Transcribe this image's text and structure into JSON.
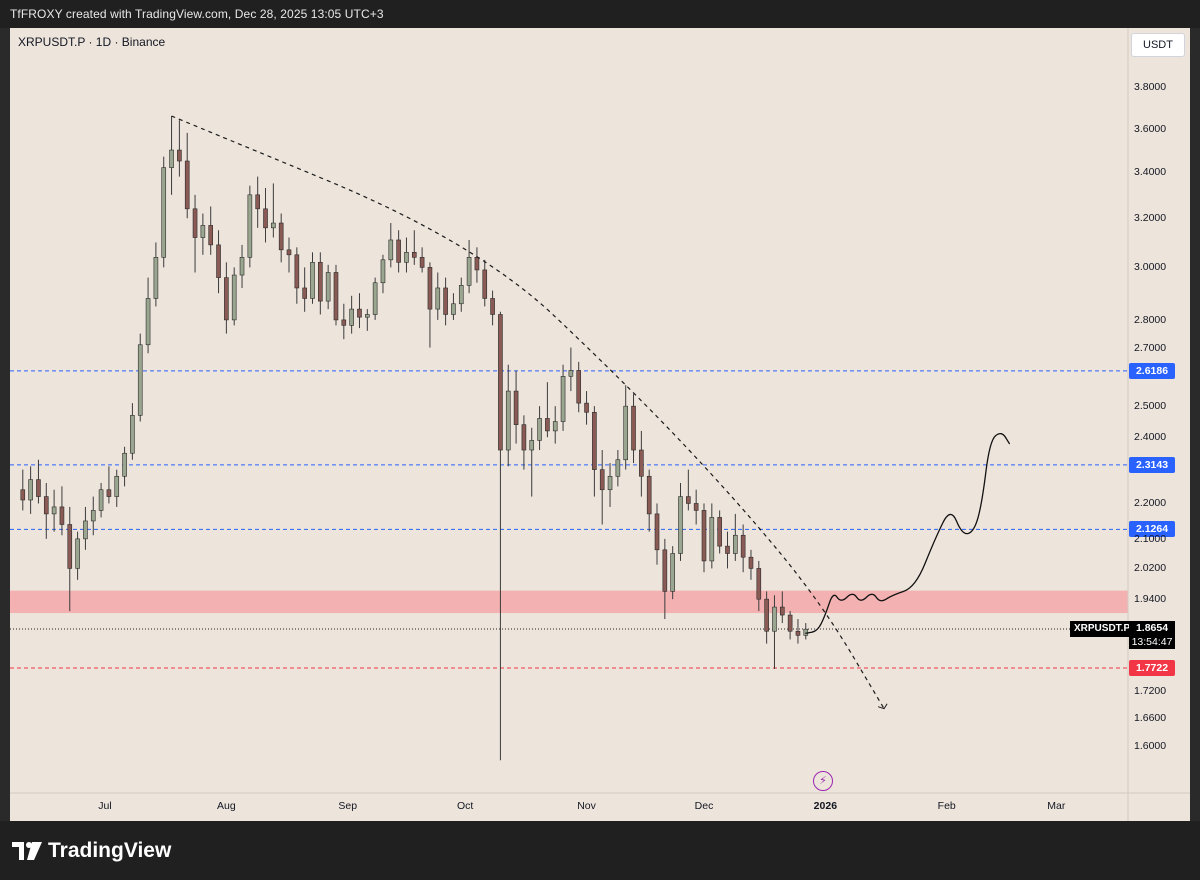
{
  "header": {
    "text": "TfFROXY created with TradingView.com, Dec 28, 2025 13:05 UTC+3"
  },
  "symbol_info": "XRPUSDT.P · 1D · Binance",
  "currency": "USDT",
  "footer": {
    "brand": "TradingView"
  },
  "last_price": {
    "symbol": "XRPUSDT.P",
    "price": "1.8654",
    "countdown": "13:54:47"
  },
  "colors": {
    "background": "#ede4dc",
    "up_candle": "#9aa68f",
    "down_candle": "#8a5a55",
    "blue_line": "#2962ff",
    "red_line": "#f23645",
    "zone": "#f3a9a9"
  },
  "chart_data": {
    "type": "candlestick",
    "symbol": "XRPUSDT.P",
    "interval": "1D",
    "exchange": "Binance",
    "y_scale": "log",
    "ylim": [
      1.55,
      3.95
    ],
    "y_ticks": [
      "3.8000",
      "3.6000",
      "3.4000",
      "3.2000",
      "3.0000",
      "2.8000",
      "2.7000",
      "2.5000",
      "2.4000",
      "2.2000",
      "2.1000",
      "2.0200",
      "1.9400",
      "1.7200",
      "1.6600",
      "1.6000"
    ],
    "x_ticks": [
      {
        "label": "Jul",
        "date": "2025-07-01"
      },
      {
        "label": "Aug",
        "date": "2025-08-01"
      },
      {
        "label": "Sep",
        "date": "2025-09-01"
      },
      {
        "label": "Oct",
        "date": "2025-10-01"
      },
      {
        "label": "Nov",
        "date": "2025-11-01"
      },
      {
        "label": "Dec",
        "date": "2025-12-01"
      },
      {
        "label": "2026",
        "date": "2026-01-01",
        "bold": true
      },
      {
        "label": "Feb",
        "date": "2026-02-01"
      },
      {
        "label": "Mar",
        "date": "2026-03-01"
      }
    ],
    "price_lines": [
      {
        "value": 2.6186,
        "label": "2.6186",
        "color": "#2962ff",
        "style": "dashed"
      },
      {
        "value": 2.3143,
        "label": "2.3143",
        "color": "#2962ff",
        "style": "dashed"
      },
      {
        "value": 2.1264,
        "label": "2.1264",
        "color": "#2962ff",
        "style": "dashed"
      },
      {
        "value": 1.7722,
        "label": "1.7722",
        "color": "#f23645",
        "style": "dashed"
      }
    ],
    "last_price_line": {
      "value": 1.8654,
      "style": "dotted"
    },
    "zone": {
      "low": 1.905,
      "high": 1.962,
      "color": "#f3a9a9"
    },
    "trendline": {
      "style": "dashed",
      "points": [
        {
          "date": "2025-07-18",
          "price": 3.66
        },
        {
          "date": "2025-10-04",
          "price": 3.1
        },
        {
          "date": "2025-11-13",
          "price": 2.55
        },
        {
          "date": "2025-12-10",
          "price": 2.2
        },
        {
          "date": "2025-12-31",
          "price": 1.93
        },
        {
          "date": "2026-01-16",
          "price": 1.68
        }
      ]
    },
    "projection_path": [
      {
        "date": "2025-12-27",
        "price": 1.855
      },
      {
        "date": "2025-12-30",
        "price": 1.86
      },
      {
        "date": "2026-01-01",
        "price": 1.9
      },
      {
        "date": "2026-01-03",
        "price": 1.96
      },
      {
        "date": "2026-01-05",
        "price": 1.93
      },
      {
        "date": "2026-01-08",
        "price": 1.96
      },
      {
        "date": "2026-01-10",
        "price": 1.93
      },
      {
        "date": "2026-01-13",
        "price": 1.96
      },
      {
        "date": "2026-01-15",
        "price": 1.93
      },
      {
        "date": "2026-01-18",
        "price": 1.95
      },
      {
        "date": "2026-01-24",
        "price": 1.97
      },
      {
        "date": "2026-01-29",
        "price": 2.1
      },
      {
        "date": "2026-02-02",
        "price": 2.19
      },
      {
        "date": "2026-02-05",
        "price": 2.11
      },
      {
        "date": "2026-02-08",
        "price": 2.12
      },
      {
        "date": "2026-02-10",
        "price": 2.2
      },
      {
        "date": "2026-02-12",
        "price": 2.39
      },
      {
        "date": "2026-02-15",
        "price": 2.42
      },
      {
        "date": "2026-02-17",
        "price": 2.38
      }
    ],
    "candles": [
      [
        "2025-06-10",
        2.24,
        2.3,
        2.18,
        2.21
      ],
      [
        "2025-06-12",
        2.21,
        2.31,
        2.17,
        2.27
      ],
      [
        "2025-06-14",
        2.27,
        2.33,
        2.2,
        2.22
      ],
      [
        "2025-06-16",
        2.22,
        2.26,
        2.1,
        2.17
      ],
      [
        "2025-06-18",
        2.17,
        2.24,
        2.12,
        2.19
      ],
      [
        "2025-06-20",
        2.19,
        2.25,
        2.11,
        2.14
      ],
      [
        "2025-06-22",
        2.14,
        2.19,
        1.91,
        2.02
      ],
      [
        "2025-06-24",
        2.02,
        2.12,
        1.99,
        2.1
      ],
      [
        "2025-06-26",
        2.1,
        2.19,
        2.07,
        2.15
      ],
      [
        "2025-06-28",
        2.15,
        2.22,
        2.11,
        2.18
      ],
      [
        "2025-06-30",
        2.18,
        2.26,
        2.16,
        2.24
      ],
      [
        "2025-07-02",
        2.24,
        2.31,
        2.2,
        2.22
      ],
      [
        "2025-07-04",
        2.22,
        2.3,
        2.19,
        2.28
      ],
      [
        "2025-07-06",
        2.28,
        2.37,
        2.25,
        2.35
      ],
      [
        "2025-07-08",
        2.35,
        2.51,
        2.33,
        2.47
      ],
      [
        "2025-07-10",
        2.47,
        2.75,
        2.45,
        2.71
      ],
      [
        "2025-07-12",
        2.71,
        2.96,
        2.68,
        2.88
      ],
      [
        "2025-07-14",
        2.88,
        3.1,
        2.85,
        3.04
      ],
      [
        "2025-07-16",
        3.04,
        3.47,
        3.0,
        3.42
      ],
      [
        "2025-07-18",
        3.42,
        3.66,
        3.3,
        3.5
      ],
      [
        "2025-07-20",
        3.5,
        3.64,
        3.38,
        3.45
      ],
      [
        "2025-07-22",
        3.45,
        3.58,
        3.2,
        3.24
      ],
      [
        "2025-07-24",
        3.24,
        3.3,
        2.98,
        3.12
      ],
      [
        "2025-07-26",
        3.12,
        3.22,
        3.05,
        3.17
      ],
      [
        "2025-07-28",
        3.17,
        3.25,
        3.05,
        3.09
      ],
      [
        "2025-07-30",
        3.09,
        3.15,
        2.9,
        2.96
      ],
      [
        "2025-08-01",
        2.96,
        3.02,
        2.75,
        2.8
      ],
      [
        "2025-08-03",
        2.8,
        3.0,
        2.78,
        2.97
      ],
      [
        "2025-08-05",
        2.97,
        3.09,
        2.92,
        3.04
      ],
      [
        "2025-08-07",
        3.04,
        3.34,
        3.0,
        3.3
      ],
      [
        "2025-08-09",
        3.3,
        3.38,
        3.16,
        3.24
      ],
      [
        "2025-08-11",
        3.24,
        3.33,
        3.1,
        3.16
      ],
      [
        "2025-08-13",
        3.16,
        3.35,
        3.12,
        3.18
      ],
      [
        "2025-08-15",
        3.18,
        3.22,
        3.02,
        3.07
      ],
      [
        "2025-08-17",
        3.07,
        3.12,
        2.98,
        3.05
      ],
      [
        "2025-08-19",
        3.05,
        3.08,
        2.86,
        2.92
      ],
      [
        "2025-08-21",
        2.92,
        3.0,
        2.83,
        2.88
      ],
      [
        "2025-08-23",
        2.88,
        3.06,
        2.86,
        3.02
      ],
      [
        "2025-08-25",
        3.02,
        3.06,
        2.82,
        2.87
      ],
      [
        "2025-08-27",
        2.87,
        3.01,
        2.84,
        2.98
      ],
      [
        "2025-08-29",
        2.98,
        3.01,
        2.78,
        2.8
      ],
      [
        "2025-08-31",
        2.8,
        2.86,
        2.73,
        2.78
      ],
      [
        "2025-09-02",
        2.78,
        2.89,
        2.75,
        2.84
      ],
      [
        "2025-09-04",
        2.84,
        2.9,
        2.77,
        2.81
      ],
      [
        "2025-09-06",
        2.81,
        2.84,
        2.76,
        2.82
      ],
      [
        "2025-09-08",
        2.82,
        2.96,
        2.8,
        2.94
      ],
      [
        "2025-09-10",
        2.94,
        3.05,
        2.9,
        3.03
      ],
      [
        "2025-09-12",
        3.03,
        3.18,
        3.0,
        3.11
      ],
      [
        "2025-09-14",
        3.11,
        3.15,
        2.98,
        3.02
      ],
      [
        "2025-09-16",
        3.02,
        3.12,
        2.98,
        3.06
      ],
      [
        "2025-09-18",
        3.06,
        3.15,
        3.01,
        3.04
      ],
      [
        "2025-09-20",
        3.04,
        3.08,
        2.98,
        3.0
      ],
      [
        "2025-09-22",
        3.0,
        3.02,
        2.7,
        2.84
      ],
      [
        "2025-09-24",
        2.84,
        2.98,
        2.8,
        2.92
      ],
      [
        "2025-09-26",
        2.92,
        2.96,
        2.78,
        2.82
      ],
      [
        "2025-09-28",
        2.82,
        2.9,
        2.8,
        2.86
      ],
      [
        "2025-09-30",
        2.86,
        2.96,
        2.83,
        2.93
      ],
      [
        "2025-10-02",
        2.93,
        3.11,
        2.9,
        3.04
      ],
      [
        "2025-10-04",
        3.04,
        3.08,
        2.94,
        2.99
      ],
      [
        "2025-10-06",
        2.99,
        3.03,
        2.85,
        2.88
      ],
      [
        "2025-10-08",
        2.88,
        2.91,
        2.78,
        2.82
      ],
      [
        "2025-10-10",
        2.82,
        2.83,
        1.57,
        2.36
      ],
      [
        "2025-10-12",
        2.36,
        2.64,
        2.31,
        2.55
      ],
      [
        "2025-10-14",
        2.55,
        2.62,
        2.38,
        2.44
      ],
      [
        "2025-10-16",
        2.44,
        2.47,
        2.3,
        2.36
      ],
      [
        "2025-10-18",
        2.36,
        2.43,
        2.22,
        2.39
      ],
      [
        "2025-10-20",
        2.39,
        2.5,
        2.36,
        2.46
      ],
      [
        "2025-10-22",
        2.46,
        2.58,
        2.4,
        2.42
      ],
      [
        "2025-10-24",
        2.42,
        2.5,
        2.38,
        2.45
      ],
      [
        "2025-10-26",
        2.45,
        2.64,
        2.42,
        2.6
      ],
      [
        "2025-10-28",
        2.6,
        2.7,
        2.55,
        2.62
      ],
      [
        "2025-10-30",
        2.62,
        2.65,
        2.48,
        2.51
      ],
      [
        "2025-11-01",
        2.51,
        2.55,
        2.44,
        2.48
      ],
      [
        "2025-11-03",
        2.48,
        2.5,
        2.22,
        2.3
      ],
      [
        "2025-11-05",
        2.3,
        2.36,
        2.14,
        2.24
      ],
      [
        "2025-11-07",
        2.24,
        2.32,
        2.19,
        2.28
      ],
      [
        "2025-11-09",
        2.28,
        2.36,
        2.25,
        2.33
      ],
      [
        "2025-11-11",
        2.33,
        2.57,
        2.3,
        2.5
      ],
      [
        "2025-11-13",
        2.5,
        2.54,
        2.32,
        2.36
      ],
      [
        "2025-11-15",
        2.36,
        2.42,
        2.22,
        2.28
      ],
      [
        "2025-11-17",
        2.28,
        2.3,
        2.12,
        2.17
      ],
      [
        "2025-11-19",
        2.17,
        2.2,
        2.03,
        2.07
      ],
      [
        "2025-11-21",
        2.07,
        2.1,
        1.89,
        1.96
      ],
      [
        "2025-11-23",
        1.96,
        2.08,
        1.94,
        2.06
      ],
      [
        "2025-11-25",
        2.06,
        2.26,
        2.04,
        2.22
      ],
      [
        "2025-11-27",
        2.22,
        2.3,
        2.18,
        2.2
      ],
      [
        "2025-11-29",
        2.2,
        2.24,
        2.14,
        2.18
      ],
      [
        "2025-12-01",
        2.18,
        2.2,
        2.01,
        2.04
      ],
      [
        "2025-12-03",
        2.04,
        2.2,
        2.02,
        2.16
      ],
      [
        "2025-12-05",
        2.16,
        2.18,
        2.06,
        2.08
      ],
      [
        "2025-12-07",
        2.08,
        2.12,
        2.02,
        2.06
      ],
      [
        "2025-12-09",
        2.06,
        2.17,
        2.04,
        2.11
      ],
      [
        "2025-12-11",
        2.11,
        2.14,
        2.01,
        2.05
      ],
      [
        "2025-12-13",
        2.05,
        2.07,
        1.99,
        2.02
      ],
      [
        "2025-12-15",
        2.02,
        2.04,
        1.91,
        1.94
      ],
      [
        "2025-12-17",
        1.94,
        1.96,
        1.83,
        1.86
      ],
      [
        "2025-12-19",
        1.86,
        1.95,
        1.77,
        1.92
      ],
      [
        "2025-12-21",
        1.92,
        1.96,
        1.88,
        1.9
      ],
      [
        "2025-12-23",
        1.9,
        1.91,
        1.84,
        1.86
      ],
      [
        "2025-12-25",
        1.86,
        1.89,
        1.83,
        1.85
      ],
      [
        "2025-12-27",
        1.85,
        1.88,
        1.84,
        1.865
      ]
    ]
  }
}
